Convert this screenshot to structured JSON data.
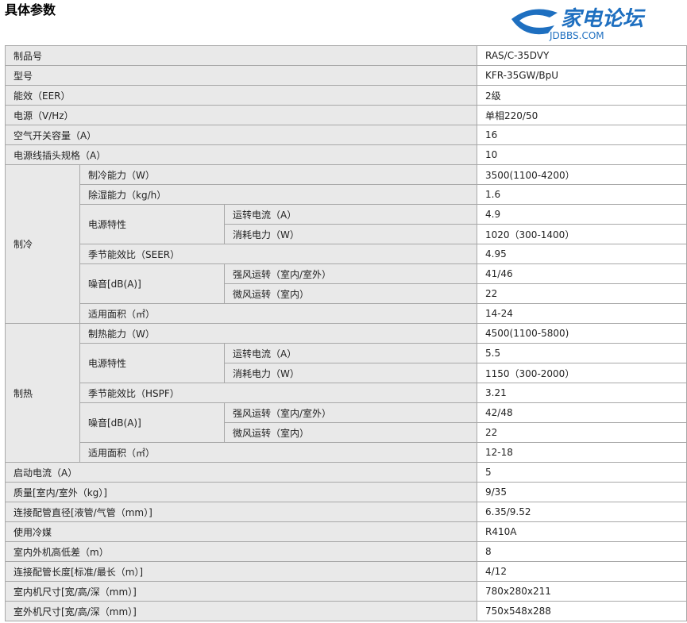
{
  "title": "具体参数",
  "rows": {
    "product_no": {
      "label": "制品号",
      "value": "RAS/C-35DVY"
    },
    "model": {
      "label": "型号",
      "value": "KFR-35GW/BpU"
    },
    "eer": {
      "label": "能效（EER）",
      "value": "2级"
    },
    "power": {
      "label": "电源（V/Hz）",
      "value": "单相220/50"
    },
    "breaker": {
      "label": "空气开关容量（A）",
      "value": "16"
    },
    "plug": {
      "label": "电源线插头规格（A）",
      "value": "10"
    },
    "cooling": {
      "label": "制冷",
      "capacity": {
        "label": "制冷能力（W）",
        "value": "3500(1100-4200）"
      },
      "dehumid": {
        "label": "除湿能力（kg/h）",
        "value": "1.6"
      },
      "power_char": {
        "label": "电源特性",
        "current": {
          "label": "运转电流（A）",
          "value": "4.9"
        },
        "consumption": {
          "label": "消耗电力（W）",
          "value": "1020（300-1400）"
        }
      },
      "seasonal": {
        "label": "季节能效比（SEER）",
        "value": "4.95"
      },
      "noise": {
        "label": "噪音[dB(A)]",
        "strong": {
          "label": "强风运转（室内/室外）",
          "value": "41/46"
        },
        "weak": {
          "label": "微风运转（室内）",
          "value": "22"
        }
      },
      "area": {
        "label": "适用面积（㎡）",
        "value": "14-24"
      }
    },
    "heating": {
      "label": "制热",
      "capacity": {
        "label": "制热能力（W）",
        "value": "4500(1100-5800)"
      },
      "power_char": {
        "label": "电源特性",
        "current": {
          "label": "运转电流（A）",
          "value": "5.5"
        },
        "consumption": {
          "label": "消耗电力（W）",
          "value": "1150（300-2000）"
        }
      },
      "seasonal": {
        "label": "季节能效比（HSPF）",
        "value": "3.21"
      },
      "noise": {
        "label": "噪音[dB(A)]",
        "strong": {
          "label": "强风运转（室内/室外）",
          "value": "42/48"
        },
        "weak": {
          "label": "微风运转（室内）",
          "value": "22"
        }
      },
      "area": {
        "label": "适用面积（㎡）",
        "value": "12-18"
      }
    },
    "start_current": {
      "label": "启动电流（A）",
      "value": "5"
    },
    "weight": {
      "label": "质量[室内/室外（kg）]",
      "value": "9/35"
    },
    "pipe_dia": {
      "label": "连接配管直径[液管/气管（mm）]",
      "value": "6.35/9.52"
    },
    "refrigerant": {
      "label": "使用冷媒",
      "value": "R410A"
    },
    "height_diff": {
      "label": "室内外机高低差（m）",
      "value": "8"
    },
    "pipe_len": {
      "label": "连接配管长度[标准/最长（m）]",
      "value": "4/12"
    },
    "indoor_size": {
      "label": "室内机尺寸[宽/高/深（mm）]",
      "value": "780x280x211"
    },
    "outdoor_size": {
      "label": "室外机尺寸[宽/高/深（mm）]",
      "value": "750x548x288"
    }
  },
  "watermark": {
    "text": "家电论坛",
    "sub": "JDBBS.COM",
    "color": "#1e6fc0"
  }
}
